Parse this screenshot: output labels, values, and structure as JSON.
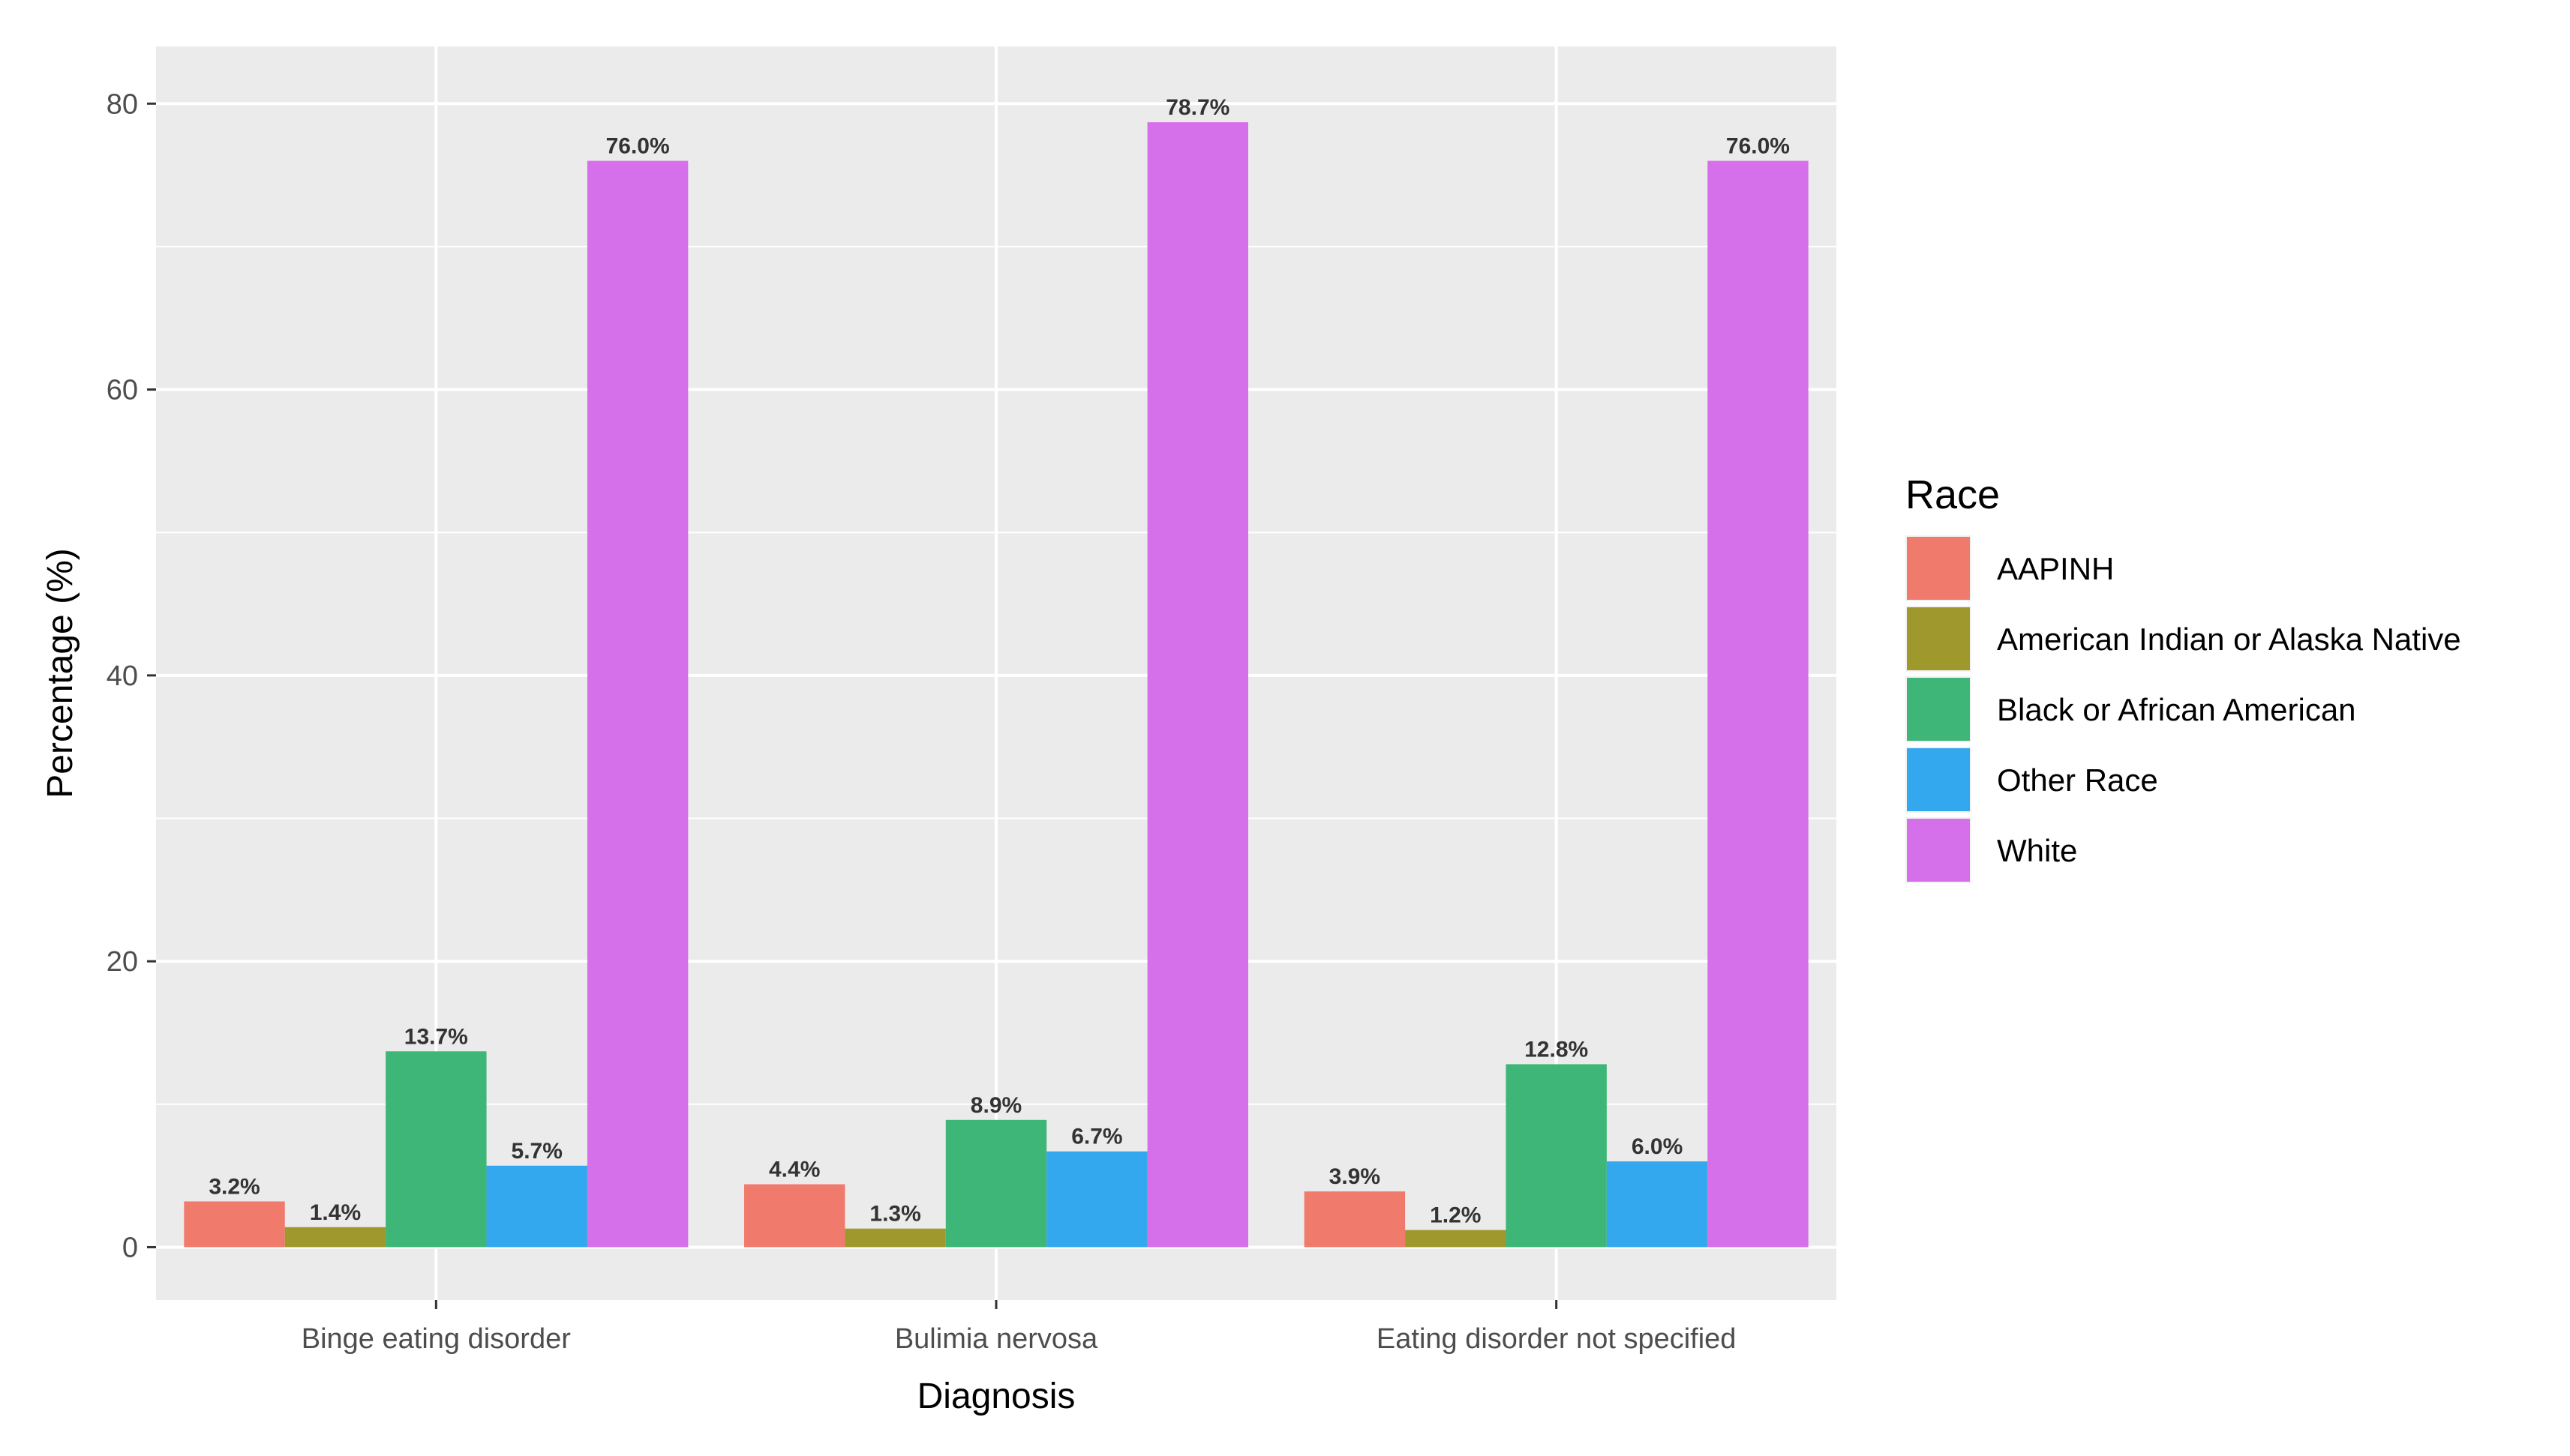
{
  "chart_data": {
    "type": "bar",
    "title": "",
    "xlabel": "Diagnosis",
    "ylabel": "Percentage (%)",
    "ylim": [
      -3.7,
      84
    ],
    "yticks": [
      0,
      20,
      40,
      60,
      80
    ],
    "yticks_labels": [
      "0",
      "20",
      "40",
      "60",
      "80"
    ],
    "categories": [
      "Binge eating disorder",
      "Bulimia nervosa",
      "Eating disorder not specified"
    ],
    "series": [
      {
        "name": "AAPINH",
        "color": "#F07A6B",
        "values": [
          3.2,
          4.4,
          3.9
        ],
        "labels": [
          "3.2%",
          "4.4%",
          "3.9%"
        ]
      },
      {
        "name": "American Indian or Alaska Native",
        "color": "#9E982D",
        "values": [
          1.4,
          1.3,
          1.2
        ],
        "labels": [
          "1.4%",
          "1.3%",
          "1.2%"
        ]
      },
      {
        "name": "Black or African American",
        "color": "#3DB677",
        "values": [
          13.7,
          8.9,
          12.8
        ],
        "labels": [
          "13.7%",
          "8.9%",
          "12.8%"
        ]
      },
      {
        "name": "Other Race",
        "color": "#33A8EE",
        "values": [
          5.7,
          6.7,
          6.0
        ],
        "labels": [
          "5.7%",
          "6.7%",
          "6.0%"
        ]
      },
      {
        "name": "White",
        "color": "#D670EA",
        "values": [
          76.0,
          78.7,
          76.0
        ],
        "labels": [
          "76.0%",
          "78.7%",
          "76.0%"
        ]
      }
    ],
    "legend": {
      "title": "Race",
      "position": "right"
    },
    "grid": true,
    "panel_background": "#EBEBEB",
    "grid_color": "#FFFFFF"
  }
}
